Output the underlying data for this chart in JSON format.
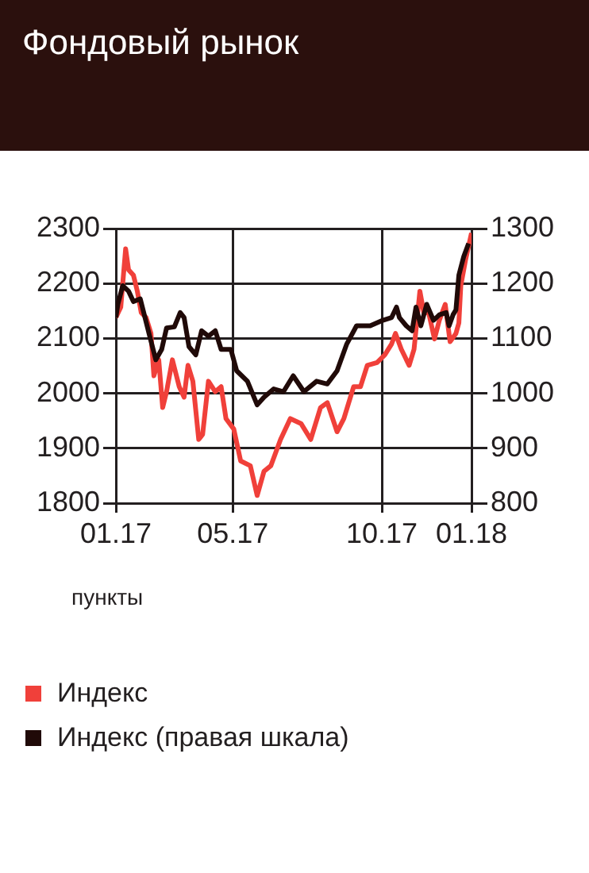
{
  "chart_data": {
    "type": "line",
    "title": "Фондовый рынок",
    "ylabel": "пункты",
    "legend": "bottom",
    "grid": true,
    "marker": "none",
    "line_style": "solid",
    "xlim": [
      "2017-01-01",
      "2018-01-01"
    ],
    "xticks": [
      {
        "value": "2017-01-01",
        "label": "01.17"
      },
      {
        "value": "2017-05-01",
        "label": "05.17"
      },
      {
        "value": "2017-10-01",
        "label": "10.17"
      },
      {
        "value": "2018-01-01",
        "label": "01.18"
      }
    ],
    "ylim": [
      1800,
      2300
    ],
    "yticks": [
      1800,
      1900,
      2000,
      2100,
      2200,
      2300
    ],
    "y2lim": [
      800,
      1300
    ],
    "y2ticks": [
      800,
      900,
      1000,
      1100,
      1200,
      1300
    ],
    "series": [
      {
        "name": "Индекс",
        "color": "#f0403a",
        "x": [
          "2017-01-01",
          "2017-01-06",
          "2017-01-11",
          "2017-01-14",
          "2017-01-19",
          "2017-01-23",
          "2017-01-27",
          "2017-02-01",
          "2017-02-06",
          "2017-02-09",
          "2017-02-14",
          "2017-02-18",
          "2017-02-22",
          "2017-02-28",
          "2017-03-07",
          "2017-03-12",
          "2017-03-16",
          "2017-03-21",
          "2017-03-27",
          "2017-03-31",
          "2017-04-06",
          "2017-04-13",
          "2017-04-19",
          "2017-04-24",
          "2017-05-02",
          "2017-05-09",
          "2017-05-19",
          "2017-05-26",
          "2017-06-02",
          "2017-06-09",
          "2017-06-19",
          "2017-06-29",
          "2017-07-10",
          "2017-07-20",
          "2017-07-30",
          "2017-08-06",
          "2017-08-16",
          "2017-08-23",
          "2017-09-02",
          "2017-09-09",
          "2017-09-16",
          "2017-09-26",
          "2017-10-04",
          "2017-10-11",
          "2017-10-15",
          "2017-10-21",
          "2017-10-29",
          "2017-11-03",
          "2017-11-09",
          "2017-11-13",
          "2017-11-18",
          "2017-11-24",
          "2017-11-29",
          "2017-12-05",
          "2017-12-10",
          "2017-12-16",
          "2017-12-19",
          "2017-12-21",
          "2017-12-26",
          "2018-01-01"
        ],
        "values": [
          2138,
          2157,
          2263,
          2225,
          2215,
          2186,
          2147,
          2138,
          2109,
          2032,
          2061,
          1974,
          2003,
          2061,
          2012,
          1993,
          2051,
          2022,
          1916,
          1925,
          2022,
          2003,
          2012,
          1954,
          1935,
          1877,
          1868,
          1814,
          1858,
          1868,
          1916,
          1954,
          1945,
          1916,
          1974,
          1983,
          1930,
          1954,
          2012,
          2012,
          2051,
          2056,
          2070,
          2090,
          2109,
          2080,
          2051,
          2080,
          2186,
          2147,
          2147,
          2099,
          2133,
          2162,
          2094,
          2109,
          2128,
          2196,
          2244,
          2292
        ]
      },
      {
        "name": "Индекс (правая шкала)",
        "color": "#200a08",
        "axis": "y2",
        "x": [
          "2017-01-01",
          "2017-01-03",
          "2017-01-08",
          "2017-01-14",
          "2017-01-19",
          "2017-01-26",
          "2017-02-04",
          "2017-02-11",
          "2017-02-17",
          "2017-02-22",
          "2017-03-02",
          "2017-03-08",
          "2017-03-12",
          "2017-03-17",
          "2017-03-24",
          "2017-03-30",
          "2017-04-06",
          "2017-04-13",
          "2017-04-19",
          "2017-04-29",
          "2017-05-05",
          "2017-05-16",
          "2017-05-26",
          "2017-06-02",
          "2017-06-12",
          "2017-06-22",
          "2017-07-02",
          "2017-07-13",
          "2017-07-26",
          "2017-08-06",
          "2017-08-16",
          "2017-08-26",
          "2017-09-05",
          "2017-09-19",
          "2017-10-02",
          "2017-10-11",
          "2017-10-16",
          "2017-10-19",
          "2017-10-26",
          "2017-11-01",
          "2017-11-05",
          "2017-11-10",
          "2017-11-16",
          "2017-11-23",
          "2017-11-29",
          "2017-12-06",
          "2017-12-09",
          "2017-12-13",
          "2017-12-16",
          "2017-12-19",
          "2017-12-24",
          "2017-12-29"
        ],
        "values": [
          1138,
          1162,
          1196,
          1186,
          1167,
          1172,
          1109,
          1061,
          1080,
          1119,
          1121,
          1147,
          1138,
          1085,
          1070,
          1114,
          1104,
          1114,
          1080,
          1080,
          1041,
          1022,
          979,
          993,
          1008,
          1003,
          1032,
          1003,
          1022,
          1017,
          1041,
          1090,
          1123,
          1123,
          1133,
          1138,
          1157,
          1138,
          1123,
          1114,
          1157,
          1123,
          1162,
          1133,
          1143,
          1147,
          1123,
          1143,
          1152,
          1215,
          1249,
          1273
        ]
      }
    ]
  }
}
